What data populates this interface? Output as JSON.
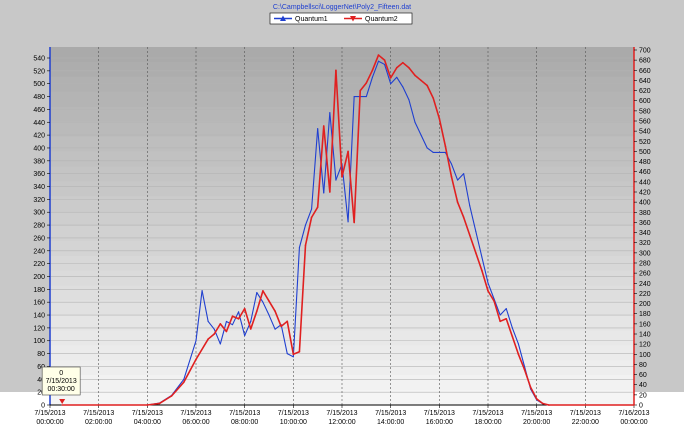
{
  "chart_data": {
    "type": "line",
    "title": "C:\\Campbellsci\\LoggerNet\\Poly2_Fifteen.dat",
    "xlabel": "",
    "ylabel": "",
    "x_ticks": [
      [
        "7/15/2013",
        "00:00:00"
      ],
      [
        "7/15/2013",
        "02:00:00"
      ],
      [
        "7/15/2013",
        "04:00:00"
      ],
      [
        "7/15/2013",
        "06:00:00"
      ],
      [
        "7/15/2013",
        "08:00:00"
      ],
      [
        "7/15/2013",
        "10:00:00"
      ],
      [
        "7/15/2013",
        "12:00:00"
      ],
      [
        "7/15/2013",
        "14:00:00"
      ],
      [
        "7/15/2013",
        "16:00:00"
      ],
      [
        "7/15/2013",
        "18:00:00"
      ],
      [
        "7/15/2013",
        "20:00:00"
      ],
      [
        "7/15/2013",
        "22:00:00"
      ],
      [
        "7/16/2013",
        "00:00:00"
      ]
    ],
    "xlim_hours": [
      0,
      24
    ],
    "y_left": {
      "min": 0,
      "max": 540,
      "step": 20,
      "color": "#1f3fd0"
    },
    "y_right": {
      "min": 0,
      "max": 700,
      "step": 20,
      "color": "#e02020"
    },
    "grid": true,
    "legend_position": "top-center",
    "series": [
      {
        "name": "Quantum1",
        "axis": "left",
        "color": "#1f3fd0",
        "marker": "triangle-up",
        "points": [
          [
            0.5,
            0
          ],
          [
            4,
            0
          ],
          [
            4.5,
            3
          ],
          [
            5,
            15
          ],
          [
            5.5,
            40
          ],
          [
            6,
            100
          ],
          [
            6.25,
            178
          ],
          [
            6.5,
            130
          ],
          [
            6.75,
            118
          ],
          [
            7,
            95
          ],
          [
            7.25,
            130
          ],
          [
            7.5,
            125
          ],
          [
            7.75,
            145
          ],
          [
            8,
            108
          ],
          [
            8.25,
            130
          ],
          [
            8.5,
            175
          ],
          [
            8.75,
            160
          ],
          [
            9,
            140
          ],
          [
            9.25,
            118
          ],
          [
            9.5,
            125
          ],
          [
            9.75,
            80
          ],
          [
            10,
            75
          ],
          [
            10.25,
            245
          ],
          [
            10.5,
            280
          ],
          [
            10.75,
            305
          ],
          [
            11,
            430
          ],
          [
            11.25,
            330
          ],
          [
            11.5,
            455
          ],
          [
            11.75,
            350
          ],
          [
            12,
            375
          ],
          [
            12.25,
            285
          ],
          [
            12.5,
            480
          ],
          [
            12.75,
            480
          ],
          [
            13,
            480
          ],
          [
            13.25,
            510
          ],
          [
            13.5,
            535
          ],
          [
            13.75,
            530
          ],
          [
            14,
            500
          ],
          [
            14.25,
            510
          ],
          [
            14.5,
            495
          ],
          [
            14.75,
            475
          ],
          [
            15,
            440
          ],
          [
            15.25,
            420
          ],
          [
            15.5,
            400
          ],
          [
            15.75,
            393
          ],
          [
            16,
            393
          ],
          [
            16.25,
            393
          ],
          [
            16.5,
            375
          ],
          [
            16.75,
            350
          ],
          [
            17,
            360
          ],
          [
            17.25,
            310
          ],
          [
            17.5,
            270
          ],
          [
            17.75,
            230
          ],
          [
            18,
            190
          ],
          [
            18.25,
            165
          ],
          [
            18.5,
            140
          ],
          [
            18.75,
            150
          ],
          [
            19,
            120
          ],
          [
            19.25,
            95
          ],
          [
            19.5,
            60
          ],
          [
            19.75,
            25
          ],
          [
            20,
            8
          ],
          [
            20.25,
            2
          ],
          [
            20.5,
            0
          ],
          [
            24,
            0
          ]
        ]
      },
      {
        "name": "Quantum2",
        "axis": "right",
        "color": "#e02020",
        "marker": "triangle-down",
        "points": [
          [
            0.5,
            0
          ],
          [
            4,
            0
          ],
          [
            4.5,
            3
          ],
          [
            5,
            18
          ],
          [
            5.5,
            45
          ],
          [
            6,
            90
          ],
          [
            6.5,
            130
          ],
          [
            6.75,
            140
          ],
          [
            7,
            160
          ],
          [
            7.25,
            145
          ],
          [
            7.5,
            175
          ],
          [
            7.75,
            170
          ],
          [
            8,
            190
          ],
          [
            8.25,
            150
          ],
          [
            8.5,
            185
          ],
          [
            8.75,
            225
          ],
          [
            9,
            205
          ],
          [
            9.25,
            185
          ],
          [
            9.5,
            155
          ],
          [
            9.75,
            165
          ],
          [
            10,
            100
          ],
          [
            10.25,
            105
          ],
          [
            10.5,
            315
          ],
          [
            10.75,
            370
          ],
          [
            11,
            390
          ],
          [
            11.25,
            550
          ],
          [
            11.5,
            420
          ],
          [
            11.75,
            660
          ],
          [
            12,
            450
          ],
          [
            12.25,
            500
          ],
          [
            12.5,
            360
          ],
          [
            12.75,
            620
          ],
          [
            13,
            635
          ],
          [
            13.25,
            660
          ],
          [
            13.5,
            690
          ],
          [
            13.75,
            680
          ],
          [
            14,
            645
          ],
          [
            14.25,
            665
          ],
          [
            14.5,
            675
          ],
          [
            14.75,
            665
          ],
          [
            15,
            650
          ],
          [
            15.25,
            640
          ],
          [
            15.5,
            630
          ],
          [
            15.75,
            605
          ],
          [
            16,
            565
          ],
          [
            16.25,
            510
          ],
          [
            16.5,
            450
          ],
          [
            16.75,
            400
          ],
          [
            17,
            370
          ],
          [
            17.25,
            335
          ],
          [
            17.5,
            300
          ],
          [
            17.75,
            265
          ],
          [
            18,
            225
          ],
          [
            18.25,
            205
          ],
          [
            18.5,
            165
          ],
          [
            18.75,
            170
          ],
          [
            19,
            135
          ],
          [
            19.25,
            100
          ],
          [
            19.5,
            70
          ],
          [
            19.75,
            35
          ],
          [
            20,
            12
          ],
          [
            20.25,
            3
          ],
          [
            20.5,
            0
          ],
          [
            24,
            0
          ]
        ]
      }
    ],
    "hover_tooltip": {
      "value": "0",
      "date": "7/15/2013",
      "time": "00:30:00",
      "x": 0.5,
      "y": 0
    }
  }
}
